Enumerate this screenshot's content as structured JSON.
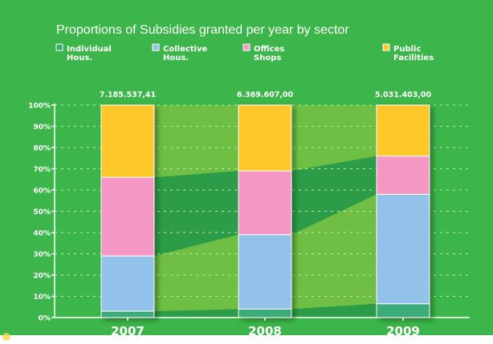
{
  "chart_data": {
    "type": "bar",
    "stacked": true,
    "percent_stacked": true,
    "title": "Proportions of Subsidies granted per year by sector",
    "categories": [
      "2007",
      "2008",
      "2009"
    ],
    "totals": [
      "7.185.537,41",
      "6.369.607,00",
      "5.031.403,00"
    ],
    "series": [
      {
        "name": "Individual Hous.",
        "name_lines": [
          "Individual",
          "Hous."
        ],
        "color": "#3aab7a",
        "values": [
          3,
          4,
          6.5
        ]
      },
      {
        "name": "Collective Hous.",
        "name_lines": [
          "Collective",
          "Hous."
        ],
        "color": "#92c1e9",
        "values": [
          26,
          35,
          51.5
        ]
      },
      {
        "name": "Offices Shops",
        "name_lines": [
          "Offices",
          "Shops"
        ],
        "color": "#f497c5",
        "values": [
          37,
          30,
          18
        ]
      },
      {
        "name": "Public Facilities",
        "name_lines": [
          "Public",
          "Facilities"
        ],
        "color": "#ffc82c",
        "values": [
          34,
          31,
          24
        ]
      }
    ],
    "ylim": [
      0,
      100
    ],
    "yticks": [
      "0%",
      "10%",
      "20%",
      "30%",
      "40%",
      "50%",
      "60%",
      "70%",
      "80%",
      "90%",
      "100%"
    ],
    "grid": true,
    "legend_position": "top",
    "background_color": "#3cb54a",
    "band_colors": {
      "light": "#6fbf44",
      "dark": "#2d9c48"
    }
  }
}
